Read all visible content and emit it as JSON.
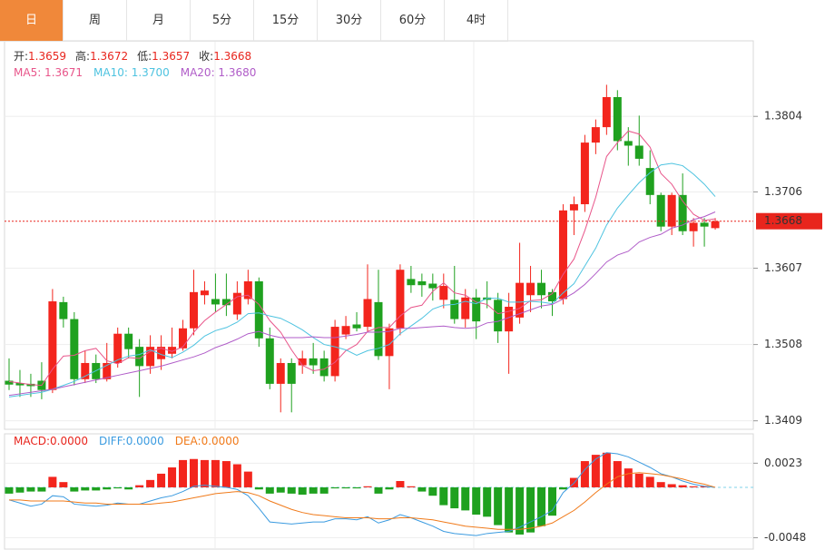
{
  "tabs": [
    "日",
    "周",
    "月",
    "5分",
    "15分",
    "30分",
    "60分",
    "4时"
  ],
  "active_tab": 0,
  "chart_data": [
    {
      "type": "candlestick",
      "up_color": "#f3251d",
      "down_color": "#1fa11f",
      "info": [
        {
          "label": "开:",
          "value": 1.3659
        },
        {
          "label": "高:",
          "value": 1.3672
        },
        {
          "label": "低:",
          "value": 1.3657
        },
        {
          "label": "收:",
          "value": 1.3668
        }
      ],
      "open": [
        1.3461,
        1.3458,
        1.3457,
        1.3461,
        1.3449,
        1.3563,
        1.3541,
        1.3463,
        1.3484,
        1.3463,
        1.3484,
        1.3522,
        1.3505,
        1.348,
        1.3489,
        1.3496,
        1.3503,
        1.3529,
        1.3572,
        1.3567,
        1.3567,
        1.3547,
        1.3567,
        1.359,
        1.3516,
        1.3457,
        1.3484,
        1.3481,
        1.349,
        1.349,
        1.3467,
        1.3521,
        1.3534,
        1.3531,
        1.3563,
        1.3493,
        1.3529,
        1.3593,
        1.359,
        1.3587,
        1.3566,
        1.3566,
        1.3541,
        1.3569,
        1.3569,
        1.3566,
        1.3525,
        1.3543,
        1.3572,
        1.3588,
        1.3576,
        1.3567,
        1.3682,
        1.369,
        1.377,
        1.379,
        1.3829,
        1.3772,
        1.3766,
        1.3737,
        1.3702,
        1.3661,
        1.3702,
        1.3655,
        1.3666,
        1.3659
      ],
      "high": [
        1.349,
        1.3475,
        1.347,
        1.3485,
        1.358,
        1.357,
        1.355,
        1.35,
        1.3495,
        1.351,
        1.353,
        1.353,
        1.3515,
        1.352,
        1.352,
        1.353,
        1.354,
        1.3605,
        1.359,
        1.36,
        1.36,
        1.359,
        1.3605,
        1.3595,
        1.353,
        1.349,
        1.349,
        1.35,
        1.351,
        1.35,
        1.354,
        1.3545,
        1.355,
        1.3612,
        1.3605,
        1.3535,
        1.3612,
        1.361,
        1.36,
        1.36,
        1.36,
        1.361,
        1.358,
        1.358,
        1.359,
        1.3575,
        1.3575,
        1.364,
        1.361,
        1.3605,
        1.358,
        1.369,
        1.37,
        1.378,
        1.38,
        1.3845,
        1.3838,
        1.379,
        1.3805,
        1.376,
        1.3705,
        1.3705,
        1.373,
        1.3672,
        1.3672,
        1.3672
      ],
      "low": [
        1.3449,
        1.344,
        1.344,
        1.3437,
        1.3445,
        1.353,
        1.3455,
        1.3458,
        1.3458,
        1.346,
        1.3478,
        1.349,
        1.344,
        1.347,
        1.3475,
        1.349,
        1.35,
        1.352,
        1.356,
        1.355,
        1.3545,
        1.354,
        1.356,
        1.3505,
        1.345,
        1.342,
        1.342,
        1.347,
        1.347,
        1.346,
        1.346,
        1.3515,
        1.3525,
        1.3525,
        1.3488,
        1.345,
        1.352,
        1.3575,
        1.357,
        1.3565,
        1.3555,
        1.3535,
        1.353,
        1.3515,
        1.3555,
        1.351,
        1.347,
        1.3535,
        1.355,
        1.3555,
        1.3545,
        1.356,
        1.365,
        1.368,
        1.3755,
        1.378,
        1.376,
        1.374,
        1.374,
        1.369,
        1.3655,
        1.365,
        1.365,
        1.3635,
        1.3635,
        1.3657
      ],
      "close": [
        1.3456,
        1.3455,
        1.3454,
        1.3449,
        1.3564,
        1.3541,
        1.3463,
        1.3484,
        1.3463,
        1.3484,
        1.3522,
        1.3502,
        1.348,
        1.3505,
        1.3505,
        1.3505,
        1.3529,
        1.3576,
        1.3578,
        1.356,
        1.3559,
        1.3575,
        1.359,
        1.3516,
        1.3457,
        1.3484,
        1.3457,
        1.349,
        1.3481,
        1.3467,
        1.3531,
        1.3532,
        1.3529,
        1.3567,
        1.3493,
        1.3529,
        1.3605,
        1.3585,
        1.3585,
        1.3581,
        1.3584,
        1.3541,
        1.3569,
        1.3538,
        1.3566,
        1.3525,
        1.3557,
        1.3588,
        1.3588,
        1.3572,
        1.3564,
        1.3682,
        1.369,
        1.377,
        1.379,
        1.3829,
        1.3772,
        1.3766,
        1.3749,
        1.3702,
        1.3661,
        1.3702,
        1.3655,
        1.3666,
        1.3661,
        1.3668
      ],
      "lines": [
        {
          "label": "MA5: 1.3671",
          "color": "#e8558a",
          "values": [
            1.346,
            1.3458,
            1.3456,
            1.3455,
            1.3476,
            1.3493,
            1.3494,
            1.35,
            1.3503,
            1.3487,
            1.3483,
            1.3491,
            1.349,
            1.3499,
            1.3503,
            1.3499,
            1.3505,
            1.3524,
            1.3539,
            1.355,
            1.356,
            1.357,
            1.3572,
            1.356,
            1.3539,
            1.3524,
            1.3501,
            1.3481,
            1.3474,
            1.3476,
            1.3485,
            1.35,
            1.3508,
            1.3525,
            1.353,
            1.353,
            1.3545,
            1.3556,
            1.3559,
            1.3577,
            1.3588,
            1.3575,
            1.3572,
            1.3563,
            1.356,
            1.3548,
            1.3551,
            1.3555,
            1.3565,
            1.3566,
            1.3574,
            1.3599,
            1.3619,
            1.3656,
            1.3699,
            1.3752,
            1.377,
            1.3785,
            1.3781,
            1.3764,
            1.373,
            1.3716,
            1.3694,
            1.3677,
            1.3669,
            1.3671
          ]
        },
        {
          "label": "MA10: 1.3700",
          "color": "#4ec3e0",
          "values": [
            1.344,
            1.3442,
            1.3444,
            1.3446,
            1.345,
            1.3455,
            1.346,
            1.3467,
            1.3474,
            1.3481,
            1.3488,
            1.3493,
            1.3495,
            1.3501,
            1.3495,
            1.3491,
            1.3498,
            1.3507,
            1.3519,
            1.3526,
            1.353,
            1.3537,
            1.3548,
            1.3549,
            1.3545,
            1.3542,
            1.3535,
            1.3527,
            1.3517,
            1.3508,
            1.3505,
            1.3501,
            1.3494,
            1.35,
            1.3503,
            1.3508,
            1.3522,
            1.3532,
            1.3542,
            1.3554,
            1.3559,
            1.356,
            1.3564,
            1.3561,
            1.3568,
            1.3568,
            1.3563,
            1.3563,
            1.3564,
            1.3563,
            1.3561,
            1.3575,
            1.3587,
            1.361,
            1.3633,
            1.3663,
            1.3685,
            1.3702,
            1.3718,
            1.3731,
            1.3741,
            1.3743,
            1.374,
            1.3729,
            1.3716,
            1.37
          ]
        },
        {
          "label": "MA20: 1.3680",
          "color": "#b05cc8",
          "values": [
            1.3442,
            1.3444,
            1.3446,
            1.3448,
            1.345,
            1.3453,
            1.3456,
            1.3459,
            1.3462,
            1.3465,
            1.3468,
            1.3471,
            1.3474,
            1.3477,
            1.348,
            1.3484,
            1.3488,
            1.3492,
            1.3497,
            1.3504,
            1.3509,
            1.3515,
            1.3522,
            1.3525,
            1.352,
            1.3517,
            1.3517,
            1.3517,
            1.3518,
            1.3517,
            1.3517,
            1.3519,
            1.3521,
            1.3524,
            1.3524,
            1.3525,
            1.3529,
            1.3529,
            1.353,
            1.3531,
            1.3532,
            1.353,
            1.3529,
            1.353,
            1.3536,
            1.3538,
            1.3543,
            1.3548,
            1.3553,
            1.3558,
            1.356,
            1.3567,
            1.3575,
            1.3586,
            1.36,
            1.3615,
            1.3624,
            1.3629,
            1.3641,
            1.3647,
            1.3651,
            1.3659,
            1.3663,
            1.367,
            1.3674,
            1.368
          ]
        }
      ],
      "last_price": 1.3668,
      "last_price_color": "#e8251d",
      "ylim": [
        1.3398,
        1.3902
      ],
      "yticks": [
        1.3409,
        1.3508,
        1.3607,
        1.3706,
        1.3804
      ]
    },
    {
      "type": "macd",
      "up_color": "#f3251d",
      "down_color": "#1fa11f",
      "series": [
        {
          "label": "MACD:0.0000",
          "color": "#e8251d",
          "kind": "bar",
          "values": [
            -0.0006,
            -0.0005,
            -0.0004,
            -0.0004,
            0.001,
            0.0005,
            -0.0004,
            -0.0003,
            -0.0003,
            -0.0002,
            -0.0001,
            -0.0002,
            0.0002,
            0.0007,
            0.0013,
            0.0019,
            0.0026,
            0.0027,
            0.0026,
            0.0026,
            0.0025,
            0.0022,
            0.0015,
            -0.0002,
            -0.0006,
            -0.0005,
            -0.0006,
            -0.0007,
            -0.0006,
            -0.0006,
            -0.0001,
            -0.0001,
            -0.0001,
            0.0001,
            -0.0006,
            -0.0002,
            0.0006,
            0.0001,
            -0.0004,
            -0.0008,
            -0.0017,
            -0.002,
            -0.0022,
            -0.0026,
            -0.0028,
            -0.0036,
            -0.0043,
            -0.0045,
            -0.0043,
            -0.0037,
            -0.0027,
            -0.0002,
            0.0009,
            0.0025,
            0.0031,
            0.0033,
            0.0025,
            0.0018,
            0.0013,
            0.001,
            0.0005,
            0.0003,
            0.0002,
            0.0001,
            0.0001,
            0.0
          ]
        },
        {
          "label": "DIFF:0.0000",
          "color": "#3b9be0",
          "kind": "line",
          "values": [
            -0.0012,
            -0.0015,
            -0.0018,
            -0.0016,
            -0.0008,
            -0.0009,
            -0.0016,
            -0.0017,
            -0.0018,
            -0.0017,
            -0.0015,
            -0.0016,
            -0.0016,
            -0.0013,
            -0.001,
            -0.0008,
            -0.0004,
            0.0001,
            0.0002,
            0.0001,
            0.0,
            -0.0002,
            -0.0008,
            -0.002,
            -0.0033,
            -0.0034,
            -0.0035,
            -0.0034,
            -0.0033,
            -0.0033,
            -0.003,
            -0.003,
            -0.0031,
            -0.0028,
            -0.0034,
            -0.0031,
            -0.0026,
            -0.0029,
            -0.0033,
            -0.0037,
            -0.0042,
            -0.0044,
            -0.0045,
            -0.0046,
            -0.0044,
            -0.0043,
            -0.0042,
            -0.0038,
            -0.0033,
            -0.0028,
            -0.0022,
            -0.0005,
            0.0004,
            0.0017,
            0.0027,
            0.0033,
            0.0032,
            0.0029,
            0.0024,
            0.0019,
            0.0013,
            0.001,
            0.0006,
            0.0003,
            0.0001,
            0.0
          ]
        },
        {
          "label": "DEA:0.0000",
          "color": "#f07a1a",
          "kind": "line",
          "values": [
            -0.0012,
            -0.0012,
            -0.0013,
            -0.0013,
            -0.0013,
            -0.0013,
            -0.0014,
            -0.0015,
            -0.0015,
            -0.0016,
            -0.0016,
            -0.0016,
            -0.0016,
            -0.0016,
            -0.0015,
            -0.0014,
            -0.0012,
            -0.001,
            -0.0008,
            -0.0006,
            -0.0005,
            -0.0004,
            -0.0005,
            -0.0008,
            -0.0013,
            -0.0017,
            -0.0021,
            -0.0024,
            -0.0026,
            -0.0027,
            -0.0028,
            -0.0029,
            -0.0029,
            -0.0029,
            -0.003,
            -0.003,
            -0.0029,
            -0.0029,
            -0.003,
            -0.0031,
            -0.0033,
            -0.0035,
            -0.0037,
            -0.0038,
            -0.0039,
            -0.004,
            -0.004,
            -0.004,
            -0.0039,
            -0.0037,
            -0.0034,
            -0.0028,
            -0.0022,
            -0.0014,
            -0.0005,
            0.0003,
            0.001,
            0.0013,
            0.0014,
            0.0013,
            0.0012,
            0.001,
            0.0008,
            0.0005,
            0.0003,
            0.0
          ]
        }
      ],
      "ylim": [
        -0.0058,
        0.0051
      ],
      "yticks": [
        -0.0048,
        0.0023
      ]
    }
  ]
}
